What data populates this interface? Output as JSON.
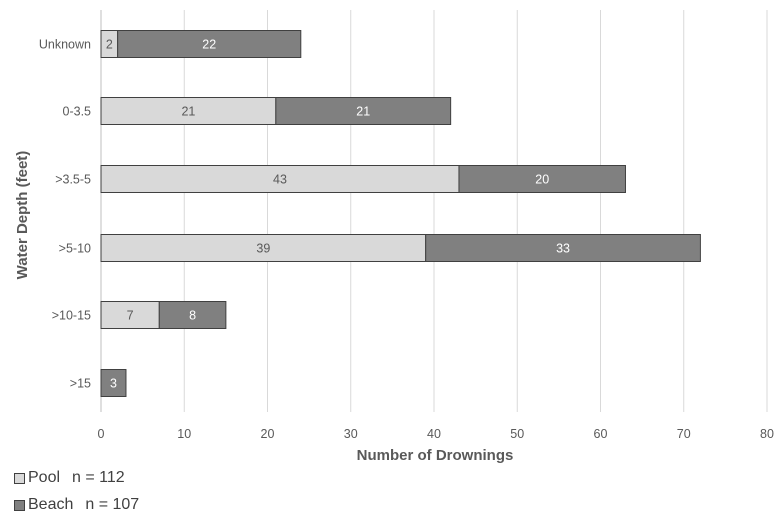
{
  "chart_data": {
    "type": "bar",
    "orientation": "horizontal",
    "stacked": true,
    "categories": [
      "Unknown",
      "0-3.5",
      ">3.5-5",
      ">5-10",
      ">10-15",
      ">15"
    ],
    "series": [
      {
        "name": "Pool",
        "values": [
          2,
          21,
          43,
          39,
          7,
          0
        ],
        "color": "#d9d9d9",
        "label_color": "#595959"
      },
      {
        "name": "Beach",
        "values": [
          22,
          21,
          20,
          33,
          8,
          3
        ],
        "color": "#808080",
        "label_color": "#ffffff"
      }
    ],
    "xlabel": "Number of Drownings",
    "ylabel": "Water Depth (feet)",
    "xlim": [
      0,
      80
    ],
    "xticks": [
      "0",
      "10",
      "20",
      "30",
      "40",
      "50",
      "60",
      "70",
      "80"
    ],
    "grid": "vertical",
    "legend": {
      "position": "bottom-left",
      "items": [
        {
          "label": "Pool",
          "count": "n = 112"
        },
        {
          "label": "Beach",
          "count": "n = 107"
        }
      ]
    }
  }
}
